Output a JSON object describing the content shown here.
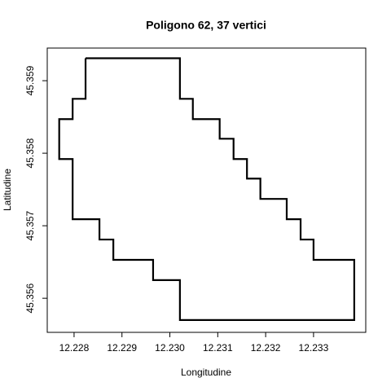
{
  "chart_data": {
    "type": "polygon",
    "title": "Poligono 62, 37 vertici",
    "x_label": "Longitudine",
    "y_label": "Latitudine",
    "color": "#000000",
    "x": [
      12.22824,
      12.23021,
      12.23021,
      12.23048,
      12.23048,
      12.23104,
      12.23104,
      12.23133,
      12.23133,
      12.23161,
      12.23161,
      12.23189,
      12.23189,
      12.23244,
      12.23244,
      12.23273,
      12.23273,
      12.233,
      12.233,
      12.23385,
      12.23385,
      12.23021,
      12.23021,
      12.22965,
      12.22965,
      12.22882,
      12.22882,
      12.22853,
      12.22853,
      12.22797,
      12.22797,
      12.22769,
      12.22769,
      12.22797,
      12.22797,
      12.22824,
      12.22824
    ],
    "y": [
      45.35931,
      45.35931,
      45.35875,
      45.35875,
      45.35847,
      45.35847,
      45.3582,
      45.3582,
      45.35792,
      45.35792,
      45.35765,
      45.35765,
      45.35737,
      45.35737,
      45.35709,
      45.35709,
      45.35681,
      45.35681,
      45.35653,
      45.35653,
      45.3557,
      45.3557,
      45.35625,
      45.35625,
      45.35653,
      45.35653,
      45.35681,
      45.35681,
      45.35709,
      45.35709,
      45.35792,
      45.35792,
      45.35847,
      45.35847,
      45.35875,
      45.35875,
      45.35931
    ],
    "xlim": [
      12.22744,
      12.23409
    ],
    "ylim": [
      45.35553,
      45.35945
    ],
    "xticks": [
      12.228,
      12.229,
      {
        "value": 12.23,
        "label": "12.230"
      },
      12.231,
      12.232,
      12.233
    ],
    "yticks": [
      45.356,
      45.357,
      45.358,
      45.359
    ]
  }
}
